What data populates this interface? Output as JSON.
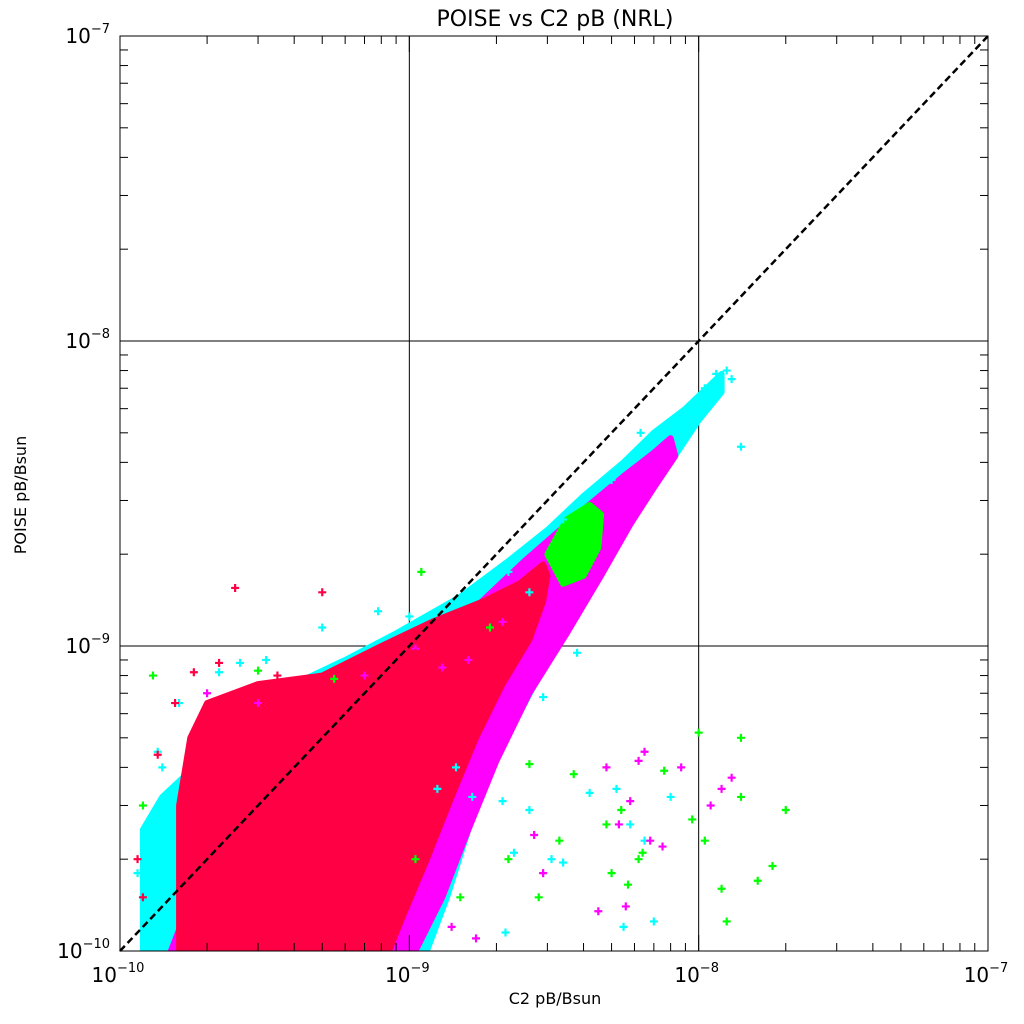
{
  "chart_data": {
    "type": "scatter",
    "title": "POISE vs C2 pB (NRL)",
    "xlabel": "C2 pB/Bsun",
    "ylabel": "POISE pB/Bsun",
    "xscale": "log",
    "yscale": "log",
    "xlim": [
      1e-10,
      1e-07
    ],
    "ylim": [
      1e-10,
      1e-07
    ],
    "grid": true,
    "ticks": [
      {
        "value": 1e-10,
        "base": "10",
        "exp": "−10"
      },
      {
        "value": 1e-09,
        "base": "10",
        "exp": "−9"
      },
      {
        "value": 1e-08,
        "base": "10",
        "exp": "−8"
      },
      {
        "value": 1e-07,
        "base": "10",
        "exp": "−7"
      }
    ],
    "reference_line": {
      "style": "dashed",
      "color": "#000000",
      "x": [
        1e-10,
        1e-07
      ],
      "y": [
        1e-10,
        1e-07
      ]
    },
    "marker": "+",
    "series": [
      {
        "color": "#00ffff",
        "points": [
          [
            1.4e-10,
            4e-10
          ],
          [
            1.6e-10,
            6.5e-10
          ],
          [
            2.2e-10,
            8.2e-10
          ],
          [
            2.6e-10,
            8.8e-10
          ],
          [
            3.2e-10,
            9e-10
          ],
          [
            5e-10,
            1.15e-09
          ],
          [
            7.8e-10,
            1.3e-09
          ],
          [
            1e-09,
            1.25e-09
          ],
          [
            2.2e-09,
            1.75e-09
          ],
          [
            3.4e-09,
            2.6e-09
          ],
          [
            5e-09,
            3.5e-09
          ],
          [
            7e-09,
            4.6e-09
          ],
          [
            8.5e-09,
            5.5e-09
          ],
          [
            1.05e-08,
            7e-09
          ],
          [
            1.15e-08,
            7.8e-09
          ],
          [
            1.25e-08,
            8e-09
          ],
          [
            1.3e-08,
            7.5e-09
          ],
          [
            1.45e-09,
            4e-10
          ],
          [
            1.65e-09,
            3.2e-10
          ],
          [
            2.1e-09,
            3.1e-10
          ],
          [
            2.6e-09,
            2.9e-10
          ],
          [
            2.3e-09,
            2.1e-10
          ],
          [
            3.1e-09,
            2e-10
          ],
          [
            3.4e-09,
            1.95e-10
          ],
          [
            4.2e-09,
            3.3e-10
          ],
          [
            5.2e-09,
            3.4e-10
          ],
          [
            5.8e-09,
            2.6e-10
          ],
          [
            6.5e-09,
            2.3e-10
          ],
          [
            5.5e-09,
            1.2e-10
          ],
          [
            7e-09,
            1.25e-10
          ],
          [
            3.8e-09,
            9.5e-10
          ],
          [
            2.9e-09,
            6.8e-10
          ],
          [
            1.25e-09,
            3.4e-10
          ],
          [
            2.15e-09,
            1.15e-10
          ],
          [
            1.15e-10,
            1.8e-10
          ],
          [
            1.35e-10,
            4.5e-10
          ],
          [
            2.6e-09,
            1.5e-09
          ],
          [
            1.4e-08,
            4.5e-09
          ],
          [
            8e-09,
            3.2e-10
          ],
          [
            6.3e-09,
            5e-09
          ]
        ],
        "points_label": "-",
        "fill": [
          [
            1.8e-10,
            4e-10
          ],
          [
            2.5e-10,
            6e-10
          ],
          [
            4e-10,
            7.5e-10
          ],
          [
            6e-10,
            9e-10
          ],
          [
            9e-10,
            1.1e-09
          ],
          [
            1.5e-09,
            1.45e-09
          ],
          [
            2.2e-09,
            1.9e-09
          ],
          [
            3e-09,
            2.4e-09
          ],
          [
            4e-09,
            3.1e-09
          ],
          [
            5.5e-09,
            4e-09
          ],
          [
            7e-09,
            5e-09
          ],
          [
            9e-09,
            6e-09
          ],
          [
            1.1e-08,
            7.2e-09
          ],
          [
            1.2e-08,
            7.8e-09
          ],
          [
            1.2e-08,
            6.8e-09
          ],
          [
            1e-08,
            5.5e-09
          ],
          [
            8e-09,
            4e-09
          ],
          [
            6e-09,
            3e-09
          ],
          [
            4.5e-09,
            2e-09
          ],
          [
            3.6e-09,
            1.3e-09
          ],
          [
            3e-09,
            9e-10
          ],
          [
            2.4e-09,
            6e-10
          ],
          [
            1.9e-09,
            4e-10
          ],
          [
            1.6e-09,
            2.5e-10
          ],
          [
            1.35e-09,
            1.5e-10
          ],
          [
            1.15e-09,
            1e-10
          ],
          [
            1.2e-10,
            1e-10
          ],
          [
            1.2e-10,
            2.5e-10
          ],
          [
            1.4e-10,
            3.2e-10
          ]
        ]
      },
      {
        "color": "#ff00ff",
        "points": [
          [
            1.05e-09,
            9.8e-10
          ],
          [
            1.6e-09,
            9e-10
          ],
          [
            2.1e-09,
            1.2e-09
          ],
          [
            1.4e-09,
            1.2e-10
          ],
          [
            1.7e-09,
            1.1e-10
          ],
          [
            2.7e-09,
            2.4e-10
          ],
          [
            2.9e-09,
            1.8e-10
          ],
          [
            4.5e-09,
            1.35e-10
          ],
          [
            5.3e-09,
            2.6e-10
          ],
          [
            5.8e-09,
            3.1e-10
          ],
          [
            6.8e-09,
            2.3e-10
          ],
          [
            7.5e-09,
            2.2e-10
          ],
          [
            8.7e-09,
            4e-10
          ],
          [
            1.2e-08,
            3.4e-10
          ],
          [
            1.3e-08,
            3.7e-10
          ],
          [
            4.8e-09,
            4e-10
          ],
          [
            6.2e-09,
            4.2e-10
          ],
          [
            6.5e-09,
            4.5e-10
          ],
          [
            5.6e-09,
            1.4e-10
          ],
          [
            1.1e-08,
            3e-10
          ],
          [
            2e-10,
            7e-10
          ],
          [
            3e-10,
            6.5e-10
          ],
          [
            7e-10,
            8e-10
          ],
          [
            1.3e-09,
            8.5e-10
          ]
        ],
        "fill": [
          [
            2.5e-10,
            3.5e-10
          ],
          [
            5e-10,
            5.5e-10
          ],
          [
            9e-10,
            8e-10
          ],
          [
            1.5e-09,
            1.2e-09
          ],
          [
            2.5e-09,
            1.9e-09
          ],
          [
            4e-09,
            2.8e-09
          ],
          [
            5.5e-09,
            3.6e-09
          ],
          [
            7e-09,
            4.3e-09
          ],
          [
            8e-09,
            4.8e-09
          ],
          [
            8.3e-09,
            4.2e-09
          ],
          [
            7e-09,
            3.3e-09
          ],
          [
            5.8e-09,
            2.5e-09
          ],
          [
            4.6e-09,
            1.7e-09
          ],
          [
            3.5e-09,
            1.1e-09
          ],
          [
            2.6e-09,
            7e-10
          ],
          [
            2e-09,
            4.2e-10
          ],
          [
            1.6e-09,
            2.5e-10
          ],
          [
            1.3e-09,
            1.5e-10
          ],
          [
            1.05e-09,
            1e-10
          ],
          [
            1.5e-10,
            1e-10
          ]
        ]
      },
      {
        "color": "#00ff00",
        "points": [
          [
            1.2e-10,
            3e-10
          ],
          [
            1.3e-10,
            8e-10
          ],
          [
            3e-10,
            8.3e-10
          ],
          [
            5.5e-10,
            7.8e-10
          ],
          [
            1.1e-09,
            1.75e-09
          ],
          [
            1.9e-09,
            1.15e-09
          ],
          [
            1.05e-09,
            2e-10
          ],
          [
            1.5e-09,
            1.5e-10
          ],
          [
            2.2e-09,
            2e-10
          ],
          [
            2.6e-09,
            4.1e-10
          ],
          [
            2.8e-09,
            1.5e-10
          ],
          [
            3.3e-09,
            2.3e-10
          ],
          [
            3.7e-09,
            3.8e-10
          ],
          [
            4.8e-09,
            2.6e-10
          ],
          [
            5e-09,
            1.8e-10
          ],
          [
            5.4e-09,
            2.9e-10
          ],
          [
            5.7e-09,
            1.65e-10
          ],
          [
            6.2e-09,
            2e-10
          ],
          [
            6.4e-09,
            2.1e-10
          ],
          [
            7.6e-09,
            3.9e-10
          ],
          [
            9.5e-09,
            2.7e-10
          ],
          [
            1e-08,
            5.2e-10
          ],
          [
            1.05e-08,
            2.3e-10
          ],
          [
            1.2e-08,
            1.6e-10
          ],
          [
            1.25e-08,
            1.25e-10
          ],
          [
            1.4e-08,
            3.2e-10
          ],
          [
            1.6e-08,
            1.7e-10
          ],
          [
            1.4e-08,
            5e-10
          ],
          [
            2e-08,
            2.9e-10
          ],
          [
            1.8e-08,
            1.9e-10
          ]
        ],
        "fill": [
          [
            3e-09,
            2e-09
          ],
          [
            3.5e-09,
            2.6e-09
          ],
          [
            4.2e-09,
            2.9e-09
          ],
          [
            4.6e-09,
            2.7e-09
          ],
          [
            4.5e-09,
            2.1e-09
          ],
          [
            4e-09,
            1.7e-09
          ],
          [
            3.4e-09,
            1.6e-09
          ]
        ]
      },
      {
        "color": "#ff0044",
        "points": [
          [
            1.35e-10,
            4.4e-10
          ],
          [
            1.55e-10,
            6.5e-10
          ],
          [
            1.8e-10,
            8.2e-10
          ],
          [
            2.5e-10,
            1.55e-09
          ],
          [
            5e-10,
            1.5e-09
          ],
          [
            1.05e-09,
            9.5e-10
          ],
          [
            2.2e-10,
            8.8e-10
          ],
          [
            1.15e-10,
            2e-10
          ],
          [
            1.2e-10,
            1.5e-10
          ],
          [
            3.5e-10,
            8e-10
          ]
        ],
        "fill": [
          [
            1.6e-10,
            1e-10
          ],
          [
            1.6e-10,
            3e-10
          ],
          [
            1.75e-10,
            5e-10
          ],
          [
            2e-10,
            6.5e-10
          ],
          [
            3e-10,
            7.5e-10
          ],
          [
            5e-10,
            8e-10
          ],
          [
            8e-10,
            1e-09
          ],
          [
            1.2e-09,
            1.2e-09
          ],
          [
            1.8e-09,
            1.4e-09
          ],
          [
            2.4e-09,
            1.6e-09
          ],
          [
            2.9e-09,
            1.85e-09
          ],
          [
            3e-09,
            1.7e-09
          ],
          [
            2.9e-09,
            1.4e-09
          ],
          [
            2.6e-09,
            1.05e-09
          ],
          [
            2.1e-09,
            7.5e-10
          ],
          [
            1.7e-09,
            5e-10
          ],
          [
            1.4e-09,
            3.2e-10
          ],
          [
            1.15e-09,
            2e-10
          ],
          [
            9.5e-10,
            1.3e-10
          ],
          [
            8.5e-10,
            1e-10
          ]
        ]
      }
    ]
  }
}
